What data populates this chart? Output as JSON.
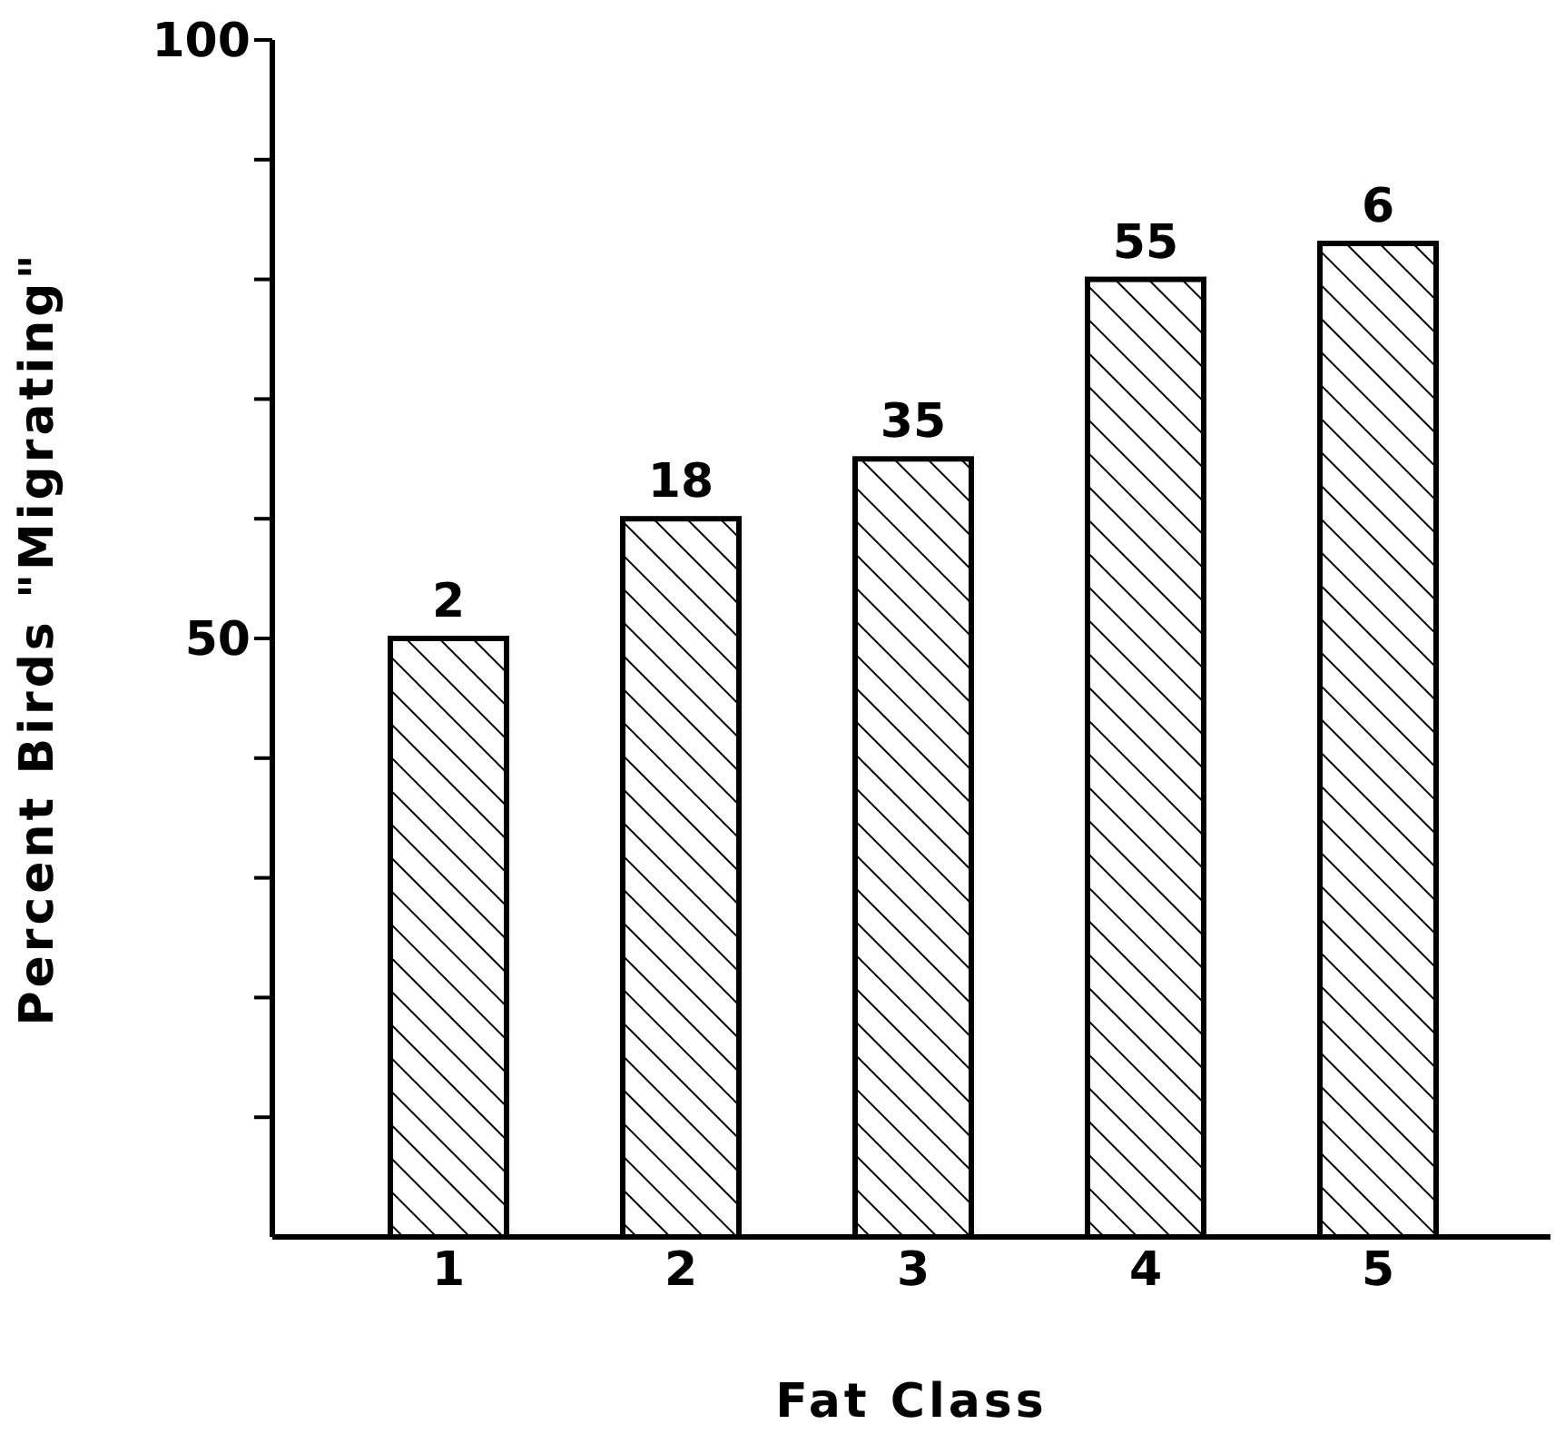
{
  "chart_data": {
    "type": "bar",
    "xlabel": "Fat Class",
    "ylabel": "Percent Birds \"Migrating\"",
    "categories": [
      "1",
      "2",
      "3",
      "4",
      "5"
    ],
    "values": [
      50,
      60,
      65,
      80,
      83
    ],
    "annotations": [
      {
        "text": "2",
        "x": "1",
        "y": 50
      },
      {
        "text": "18",
        "x": "2",
        "y": 60
      },
      {
        "text": "35",
        "x": "3",
        "y": 65
      },
      {
        "text": "55",
        "x": "4",
        "y": 80
      },
      {
        "text": "6",
        "x": "5",
        "y": 83
      }
    ],
    "color": "#000000",
    "ylim": [
      0,
      100
    ],
    "yticks": [
      {
        "value": 10,
        "label": null
      },
      {
        "value": 20,
        "label": null
      },
      {
        "value": 30,
        "label": null
      },
      {
        "value": 40,
        "label": null
      },
      50,
      {
        "value": 60,
        "label": null
      },
      {
        "value": 70,
        "label": null
      },
      {
        "value": 80,
        "label": null
      },
      {
        "value": 90,
        "label": null
      },
      100
    ],
    "grid": false,
    "legend": false
  }
}
